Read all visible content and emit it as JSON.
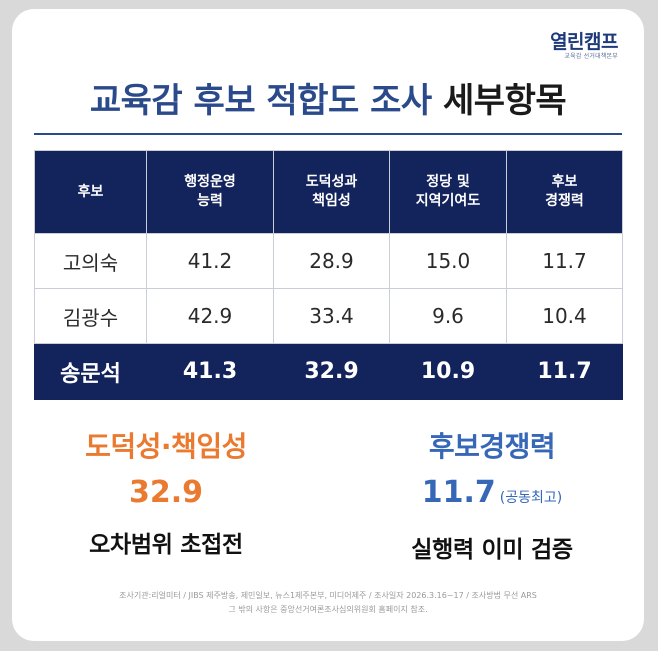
{
  "logo": {
    "main": "열린캠프",
    "sub": "교육감 선거대책본부"
  },
  "title": {
    "main": "교육감 후보 적합도 조사",
    "accent": "세부항목"
  },
  "table": {
    "headers": [
      [
        "후보"
      ],
      [
        "행정운영",
        "능력"
      ],
      [
        "도덕성과",
        "책임성"
      ],
      [
        "정당 및",
        "지역기여도"
      ],
      [
        "후보",
        "경쟁력"
      ]
    ],
    "rows": [
      [
        "고의숙",
        "41.2",
        "28.9",
        "15.0",
        "11.7"
      ],
      [
        "김광수",
        "42.9",
        "33.4",
        "9.6",
        "10.4"
      ],
      [
        "송문석",
        "41.3",
        "32.9",
        "10.9",
        "11.7"
      ]
    ]
  },
  "callouts": {
    "left": {
      "heading": "도덕성·책임성",
      "value": "32.9",
      "note": "",
      "caption": "오차범위 초접전"
    },
    "right": {
      "heading": "후보경쟁력",
      "value": "11.7",
      "note": "(공동최고)",
      "caption": "실행력 이미 검증"
    }
  },
  "footnote": {
    "line1": "조사기관:리얼미터 / JIBS 제주방송, 제민일보, 뉴스1제주본부, 미디어제주 / 조사일자 2026.3.16~17 / 조사방법 무선 ARS",
    "line2": "그 밖의 사항은 중앙선거여론조사심의위원회 홈페이지 참조."
  },
  "colors": {
    "navy": "#13235b",
    "title_blue": "#2b4a8b",
    "orange": "#ea7a2f",
    "blue": "#3767b7"
  }
}
